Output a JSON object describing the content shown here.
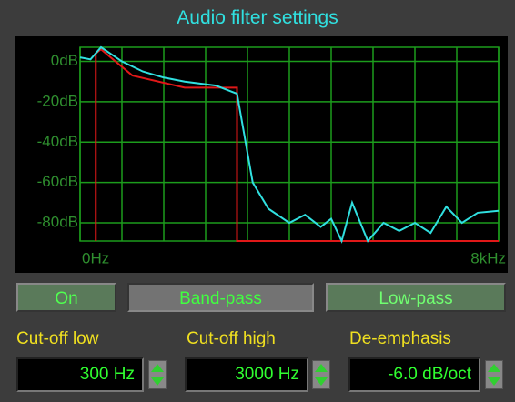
{
  "title": "Audio filter settings",
  "plot": {
    "xlim": [
      0,
      8000
    ],
    "ylim": [
      -89,
      7
    ],
    "xticks": [
      {
        "value": 0,
        "label": "0Hz"
      },
      800,
      1600,
      2400,
      3200,
      4000,
      4800,
      5600,
      6400,
      7200,
      {
        "value": 8000,
        "label": "8kHz"
      }
    ],
    "yticks": [
      {
        "value": 0,
        "label": "0dB"
      },
      {
        "value": -20,
        "label": "-20dB"
      },
      {
        "value": -40,
        "label": "-40dB"
      },
      {
        "value": -60,
        "label": "-60dB"
      },
      {
        "value": -80,
        "label": "-80dB"
      }
    ],
    "grid_color": "#1c9c1c",
    "series": [
      {
        "color": "#e01818",
        "x": [
          300,
          300,
          400,
          1000,
          2000,
          3000,
          3000,
          8000
        ],
        "values": [
          -89,
          4,
          6,
          -7,
          -13,
          -13,
          -89,
          -89
        ]
      },
      {
        "color": "#30e0e0",
        "x": [
          0,
          200,
          400,
          800,
          1200,
          1600,
          2000,
          2600,
          3000,
          3300,
          3600,
          4000,
          4300,
          4600,
          4800,
          5000,
          5200,
          5500,
          5800,
          6100,
          6400,
          6700,
          7000,
          7300,
          7600,
          8000
        ],
        "values": [
          2,
          1,
          7,
          0,
          -5,
          -8,
          -10,
          -12,
          -16,
          -60,
          -73,
          -80,
          -76,
          -82,
          -78,
          -89,
          -70,
          -89,
          -80,
          -84,
          -80,
          -85,
          -72,
          -80,
          -75,
          -74
        ]
      }
    ]
  },
  "buttons": [
    "On",
    "Band-pass",
    "Low-pass"
  ],
  "fields": [
    {
      "label": "Cut-off low",
      "value": "300 Hz"
    },
    {
      "label": "Cut-off high",
      "value": "3000 Hz"
    },
    {
      "label": "De-emphasis",
      "value": "-6.0 dB/oct"
    }
  ]
}
